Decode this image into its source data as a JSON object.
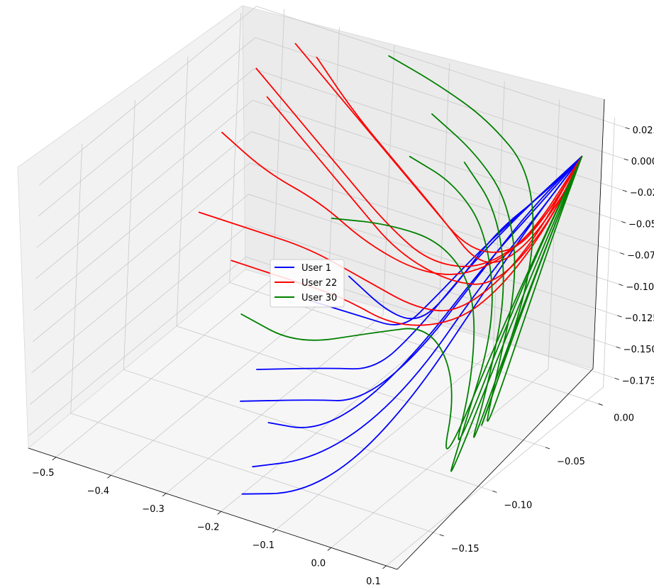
{
  "chart_data": {
    "type": "line3d",
    "title": "",
    "xlabel": "",
    "ylabel": "",
    "zlabel": "",
    "xlim": [
      -0.55,
      0.12
    ],
    "ylim": [
      -0.19,
      0.015
    ],
    "zlim": [
      -0.185,
      0.03
    ],
    "x_ticks": [
      -0.5,
      -0.4,
      -0.3,
      -0.2,
      -0.1,
      0.0,
      0.1
    ],
    "x_tick_labels": [
      "−0.5",
      "−0.4",
      "−0.3",
      "−0.2",
      "−0.1",
      "0.0",
      "0.1"
    ],
    "y_ticks": [
      -0.15,
      -0.1,
      -0.05,
      0.0
    ],
    "y_tick_labels": [
      "−0.15",
      "−0.10",
      "−0.05",
      "0.00"
    ],
    "z_ticks": [
      -0.175,
      -0.15,
      -0.125,
      -0.1,
      -0.075,
      -0.05,
      -0.025,
      0.0,
      0.025
    ],
    "z_tick_labels": [
      "−0.175",
      "−0.150",
      "−0.125",
      "−0.100",
      "−0.075",
      "−0.050",
      "−0.025",
      "0.000",
      "0.025"
    ],
    "grid": true,
    "legend_position": "center",
    "series": [
      {
        "name": "User 1",
        "color": "#0000ff",
        "trajectories": [
          [
            [
              -0.33,
              -0.04,
              -0.14
            ],
            [
              -0.2,
              -0.06,
              -0.12
            ],
            [
              -0.09,
              -0.08,
              -0.1
            ],
            [
              -0.02,
              -0.09,
              -0.06
            ],
            [
              0.04,
              -0.08,
              -0.02
            ],
            [
              0.07,
              -0.05,
              0.0
            ],
            [
              0.09,
              -0.01,
              0.015
            ]
          ],
          [
            [
              -0.3,
              -0.02,
              -0.13
            ],
            [
              -0.17,
              -0.05,
              -0.12
            ],
            [
              -0.06,
              -0.08,
              -0.09
            ],
            [
              0.01,
              -0.09,
              -0.05
            ],
            [
              0.05,
              -0.07,
              -0.01
            ],
            [
              0.08,
              -0.04,
              0.005
            ],
            [
              0.09,
              -0.01,
              0.015
            ]
          ],
          [
            [
              -0.33,
              -0.09,
              -0.16
            ],
            [
              -0.2,
              -0.09,
              -0.14
            ],
            [
              -0.1,
              -0.1,
              -0.12
            ],
            [
              -0.03,
              -0.1,
              -0.08
            ],
            [
              0.03,
              -0.08,
              -0.03
            ],
            [
              0.07,
              -0.05,
              0.0
            ],
            [
              0.09,
              -0.01,
              0.015
            ]
          ],
          [
            [
              -0.32,
              -0.11,
              -0.17
            ],
            [
              -0.19,
              -0.11,
              -0.15
            ],
            [
              -0.09,
              -0.12,
              -0.13
            ],
            [
              -0.01,
              -0.11,
              -0.09
            ],
            [
              0.04,
              -0.08,
              -0.04
            ],
            [
              0.07,
              -0.05,
              -0.005
            ],
            [
              0.09,
              -0.01,
              0.015
            ]
          ],
          [
            [
              -0.25,
              -0.12,
              -0.17
            ],
            [
              -0.15,
              -0.13,
              -0.155
            ],
            [
              -0.06,
              -0.13,
              -0.12
            ],
            [
              0.0,
              -0.11,
              -0.08
            ],
            [
              0.05,
              -0.08,
              -0.03
            ],
            [
              0.08,
              -0.04,
              0.0
            ],
            [
              0.09,
              -0.01,
              0.015
            ]
          ],
          [
            [
              -0.22,
              -0.15,
              -0.18
            ],
            [
              -0.12,
              -0.15,
              -0.16
            ],
            [
              -0.04,
              -0.14,
              -0.13
            ],
            [
              0.02,
              -0.12,
              -0.09
            ],
            [
              0.06,
              -0.09,
              -0.04
            ],
            [
              0.08,
              -0.05,
              -0.01
            ],
            [
              0.09,
              -0.01,
              0.015
            ]
          ],
          [
            [
              -0.2,
              -0.17,
              -0.185
            ],
            [
              -0.1,
              -0.17,
              -0.17
            ],
            [
              -0.02,
              -0.16,
              -0.14
            ],
            [
              0.03,
              -0.13,
              -0.1
            ],
            [
              0.06,
              -0.09,
              -0.05
            ],
            [
              0.08,
              -0.05,
              -0.01
            ],
            [
              0.09,
              -0.01,
              0.015
            ]
          ]
        ]
      },
      {
        "name": "User 22",
        "color": "#ff0000",
        "trajectories": [
          [
            [
              -0.45,
              0.0,
              0.02
            ],
            [
              -0.35,
              -0.01,
              0.0
            ],
            [
              -0.25,
              -0.02,
              -0.02
            ],
            [
              -0.15,
              -0.03,
              -0.04
            ],
            [
              -0.05,
              -0.04,
              -0.06
            ],
            [
              0.03,
              -0.04,
              -0.05
            ],
            [
              0.07,
              -0.03,
              -0.02
            ],
            [
              0.09,
              -0.01,
              0.015
            ]
          ],
          [
            [
              -0.5,
              -0.01,
              0.0
            ],
            [
              -0.4,
              -0.02,
              -0.02
            ],
            [
              -0.3,
              -0.03,
              -0.04
            ],
            [
              -0.2,
              -0.04,
              -0.06
            ],
            [
              -0.1,
              -0.05,
              -0.07
            ],
            [
              0.0,
              -0.05,
              -0.06
            ],
            [
              0.06,
              -0.03,
              -0.03
            ],
            [
              0.09,
              -0.01,
              0.015
            ]
          ],
          [
            [
              -0.52,
              -0.03,
              -0.04
            ],
            [
              -0.42,
              -0.04,
              -0.05
            ],
            [
              -0.32,
              -0.04,
              -0.06
            ],
            [
              -0.22,
              -0.05,
              -0.07
            ],
            [
              -0.12,
              -0.05,
              -0.08
            ],
            [
              -0.03,
              -0.05,
              -0.07
            ],
            [
              0.05,
              -0.04,
              -0.04
            ],
            [
              0.09,
              -0.01,
              0.015
            ]
          ],
          [
            [
              -0.46,
              -0.02,
              -0.01
            ],
            [
              -0.36,
              -0.03,
              -0.03
            ],
            [
              -0.26,
              -0.04,
              -0.05
            ],
            [
              -0.16,
              -0.05,
              -0.07
            ],
            [
              -0.06,
              -0.05,
              -0.08
            ],
            [
              0.02,
              -0.05,
              -0.07
            ],
            [
              0.07,
              -0.03,
              -0.03
            ],
            [
              0.09,
              -0.01,
              0.015
            ]
          ],
          [
            [
              -0.5,
              -0.06,
              -0.08
            ],
            [
              -0.4,
              -0.06,
              -0.08
            ],
            [
              -0.3,
              -0.06,
              -0.08
            ],
            [
              -0.2,
              -0.06,
              -0.09
            ],
            [
              -0.1,
              -0.06,
              -0.1
            ],
            [
              -0.02,
              -0.06,
              -0.09
            ],
            [
              0.05,
              -0.04,
              -0.05
            ],
            [
              0.09,
              -0.01,
              0.015
            ]
          ],
          [
            [
              -0.42,
              0.005,
              0.01
            ],
            [
              -0.32,
              -0.01,
              -0.01
            ],
            [
              -0.22,
              -0.02,
              -0.03
            ],
            [
              -0.12,
              -0.03,
              -0.05
            ],
            [
              -0.03,
              -0.04,
              -0.07
            ],
            [
              0.04,
              -0.04,
              -0.05
            ],
            [
              0.08,
              -0.02,
              -0.01
            ],
            [
              0.09,
              -0.01,
              0.015
            ]
          ],
          [
            [
              -0.42,
              -0.07,
              -0.1
            ],
            [
              -0.32,
              -0.07,
              -0.1
            ],
            [
              -0.22,
              -0.07,
              -0.1
            ],
            [
              -0.12,
              -0.07,
              -0.11
            ],
            [
              -0.03,
              -0.06,
              -0.1
            ],
            [
              0.03,
              -0.05,
              -0.07
            ],
            [
              0.07,
              -0.03,
              -0.03
            ],
            [
              0.09,
              -0.01,
              0.015
            ]
          ]
        ]
      },
      {
        "name": "User 30",
        "color": "#008000",
        "trajectories": [
          [
            [
              -0.3,
              0.01,
              0.025
            ],
            [
              -0.2,
              0.005,
              0.02
            ],
            [
              -0.1,
              0.0,
              0.01
            ],
            [
              0.0,
              -0.01,
              -0.01
            ],
            [
              0.05,
              -0.03,
              -0.06
            ],
            [
              0.07,
              -0.07,
              -0.12
            ],
            [
              0.08,
              -0.1,
              -0.16
            ],
            [
              0.09,
              -0.05,
              -0.05
            ],
            [
              0.09,
              -0.01,
              0.015
            ]
          ],
          [
            [
              -0.2,
              -0.02,
              -0.02
            ],
            [
              -0.1,
              -0.03,
              -0.02
            ],
            [
              -0.02,
              -0.04,
              -0.04
            ],
            [
              0.04,
              -0.06,
              -0.09
            ],
            [
              0.06,
              -0.1,
              -0.15
            ],
            [
              0.07,
              -0.12,
              -0.18
            ],
            [
              0.08,
              -0.06,
              -0.07
            ],
            [
              0.09,
              -0.01,
              0.015
            ]
          ],
          [
            [
              -0.28,
              -0.05,
              -0.06
            ],
            [
              -0.18,
              -0.05,
              -0.05
            ],
            [
              -0.08,
              -0.05,
              -0.05
            ],
            [
              0.0,
              -0.06,
              -0.07
            ],
            [
              0.04,
              -0.08,
              -0.12
            ],
            [
              0.06,
              -0.11,
              -0.17
            ],
            [
              0.08,
              -0.06,
              -0.06
            ],
            [
              0.09,
              -0.01,
              0.015
            ]
          ],
          [
            [
              -0.2,
              0.0,
              0.0
            ],
            [
              -0.1,
              -0.01,
              -0.01
            ],
            [
              -0.02,
              -0.02,
              -0.03
            ],
            [
              0.04,
              -0.04,
              -0.07
            ],
            [
              0.06,
              -0.07,
              -0.13
            ],
            [
              0.08,
              -0.09,
              -0.16
            ],
            [
              0.09,
              -0.04,
              -0.04
            ],
            [
              0.09,
              -0.01,
              0.015
            ]
          ],
          [
            [
              -0.38,
              -0.08,
              -0.13
            ],
            [
              -0.26,
              -0.09,
              -0.13
            ],
            [
              -0.14,
              -0.08,
              -0.11
            ],
            [
              -0.04,
              -0.08,
              -0.09
            ],
            [
              0.03,
              -0.09,
              -0.12
            ],
            [
              0.06,
              -0.12,
              -0.17
            ],
            [
              0.08,
              -0.07,
              -0.07
            ],
            [
              0.09,
              -0.01,
              0.015
            ]
          ],
          [
            [
              -0.12,
              -0.01,
              -0.02
            ],
            [
              -0.04,
              -0.02,
              -0.04
            ],
            [
              0.02,
              -0.04,
              -0.08
            ],
            [
              0.05,
              -0.07,
              -0.13
            ],
            [
              0.07,
              -0.1,
              -0.17
            ],
            [
              0.08,
              -0.06,
              -0.08
            ],
            [
              0.09,
              -0.01,
              0.015
            ]
          ]
        ]
      }
    ]
  }
}
